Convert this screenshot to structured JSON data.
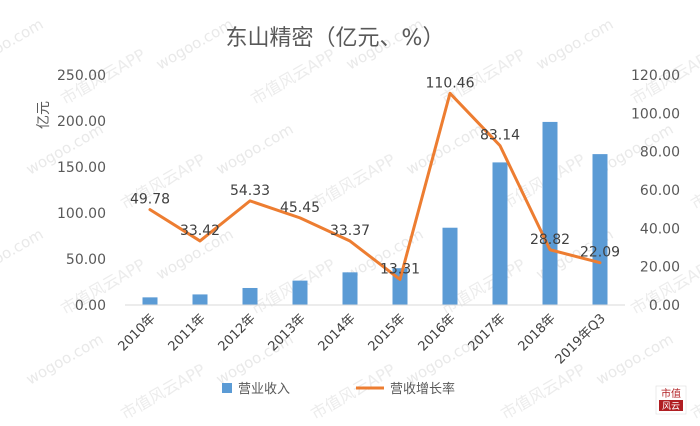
{
  "chart_data": {
    "type": "bar+line",
    "title": "东山精密（亿元、%）",
    "ylabel_left": "亿元",
    "ylim_left": [
      0,
      250
    ],
    "yticks_left": [
      "0.00",
      "50.00",
      "100.00",
      "150.00",
      "200.00",
      "250.00"
    ],
    "ylim_right": [
      0,
      120
    ],
    "yticks_right": [
      "0.00",
      "20.00",
      "40.00",
      "60.00",
      "80.00",
      "100.00",
      "120.00"
    ],
    "categories": [
      "2010年",
      "2011年",
      "2012年",
      "2013年",
      "2014年",
      "2015年",
      "2016年",
      "2017年",
      "2018年",
      "2019年Q3"
    ],
    "grid": false,
    "legend_position": "bottom",
    "series": [
      {
        "name": "营业收入",
        "type": "bar",
        "axis": "left",
        "color": "#5B9BD5",
        "values": [
          8.3,
          11.5,
          18.5,
          26.5,
          35.5,
          40.0,
          84.0,
          155.0,
          199.0,
          164.0
        ]
      },
      {
        "name": "营收增长率",
        "type": "line",
        "axis": "right",
        "color": "#ED7D31",
        "values": [
          49.78,
          33.42,
          54.33,
          45.45,
          33.37,
          13.31,
          110.46,
          83.14,
          28.82,
          22.09
        ],
        "labels": [
          "49.78",
          "33.42",
          "54.33",
          "45.45",
          "33.37",
          "13.31",
          "110.46",
          "83.14",
          "28.82",
          "22.09"
        ]
      }
    ]
  },
  "watermark": {
    "site": "wogoo.com",
    "app": "市值风云APP",
    "logo_top": "市值",
    "logo_bottom": "风云"
  }
}
